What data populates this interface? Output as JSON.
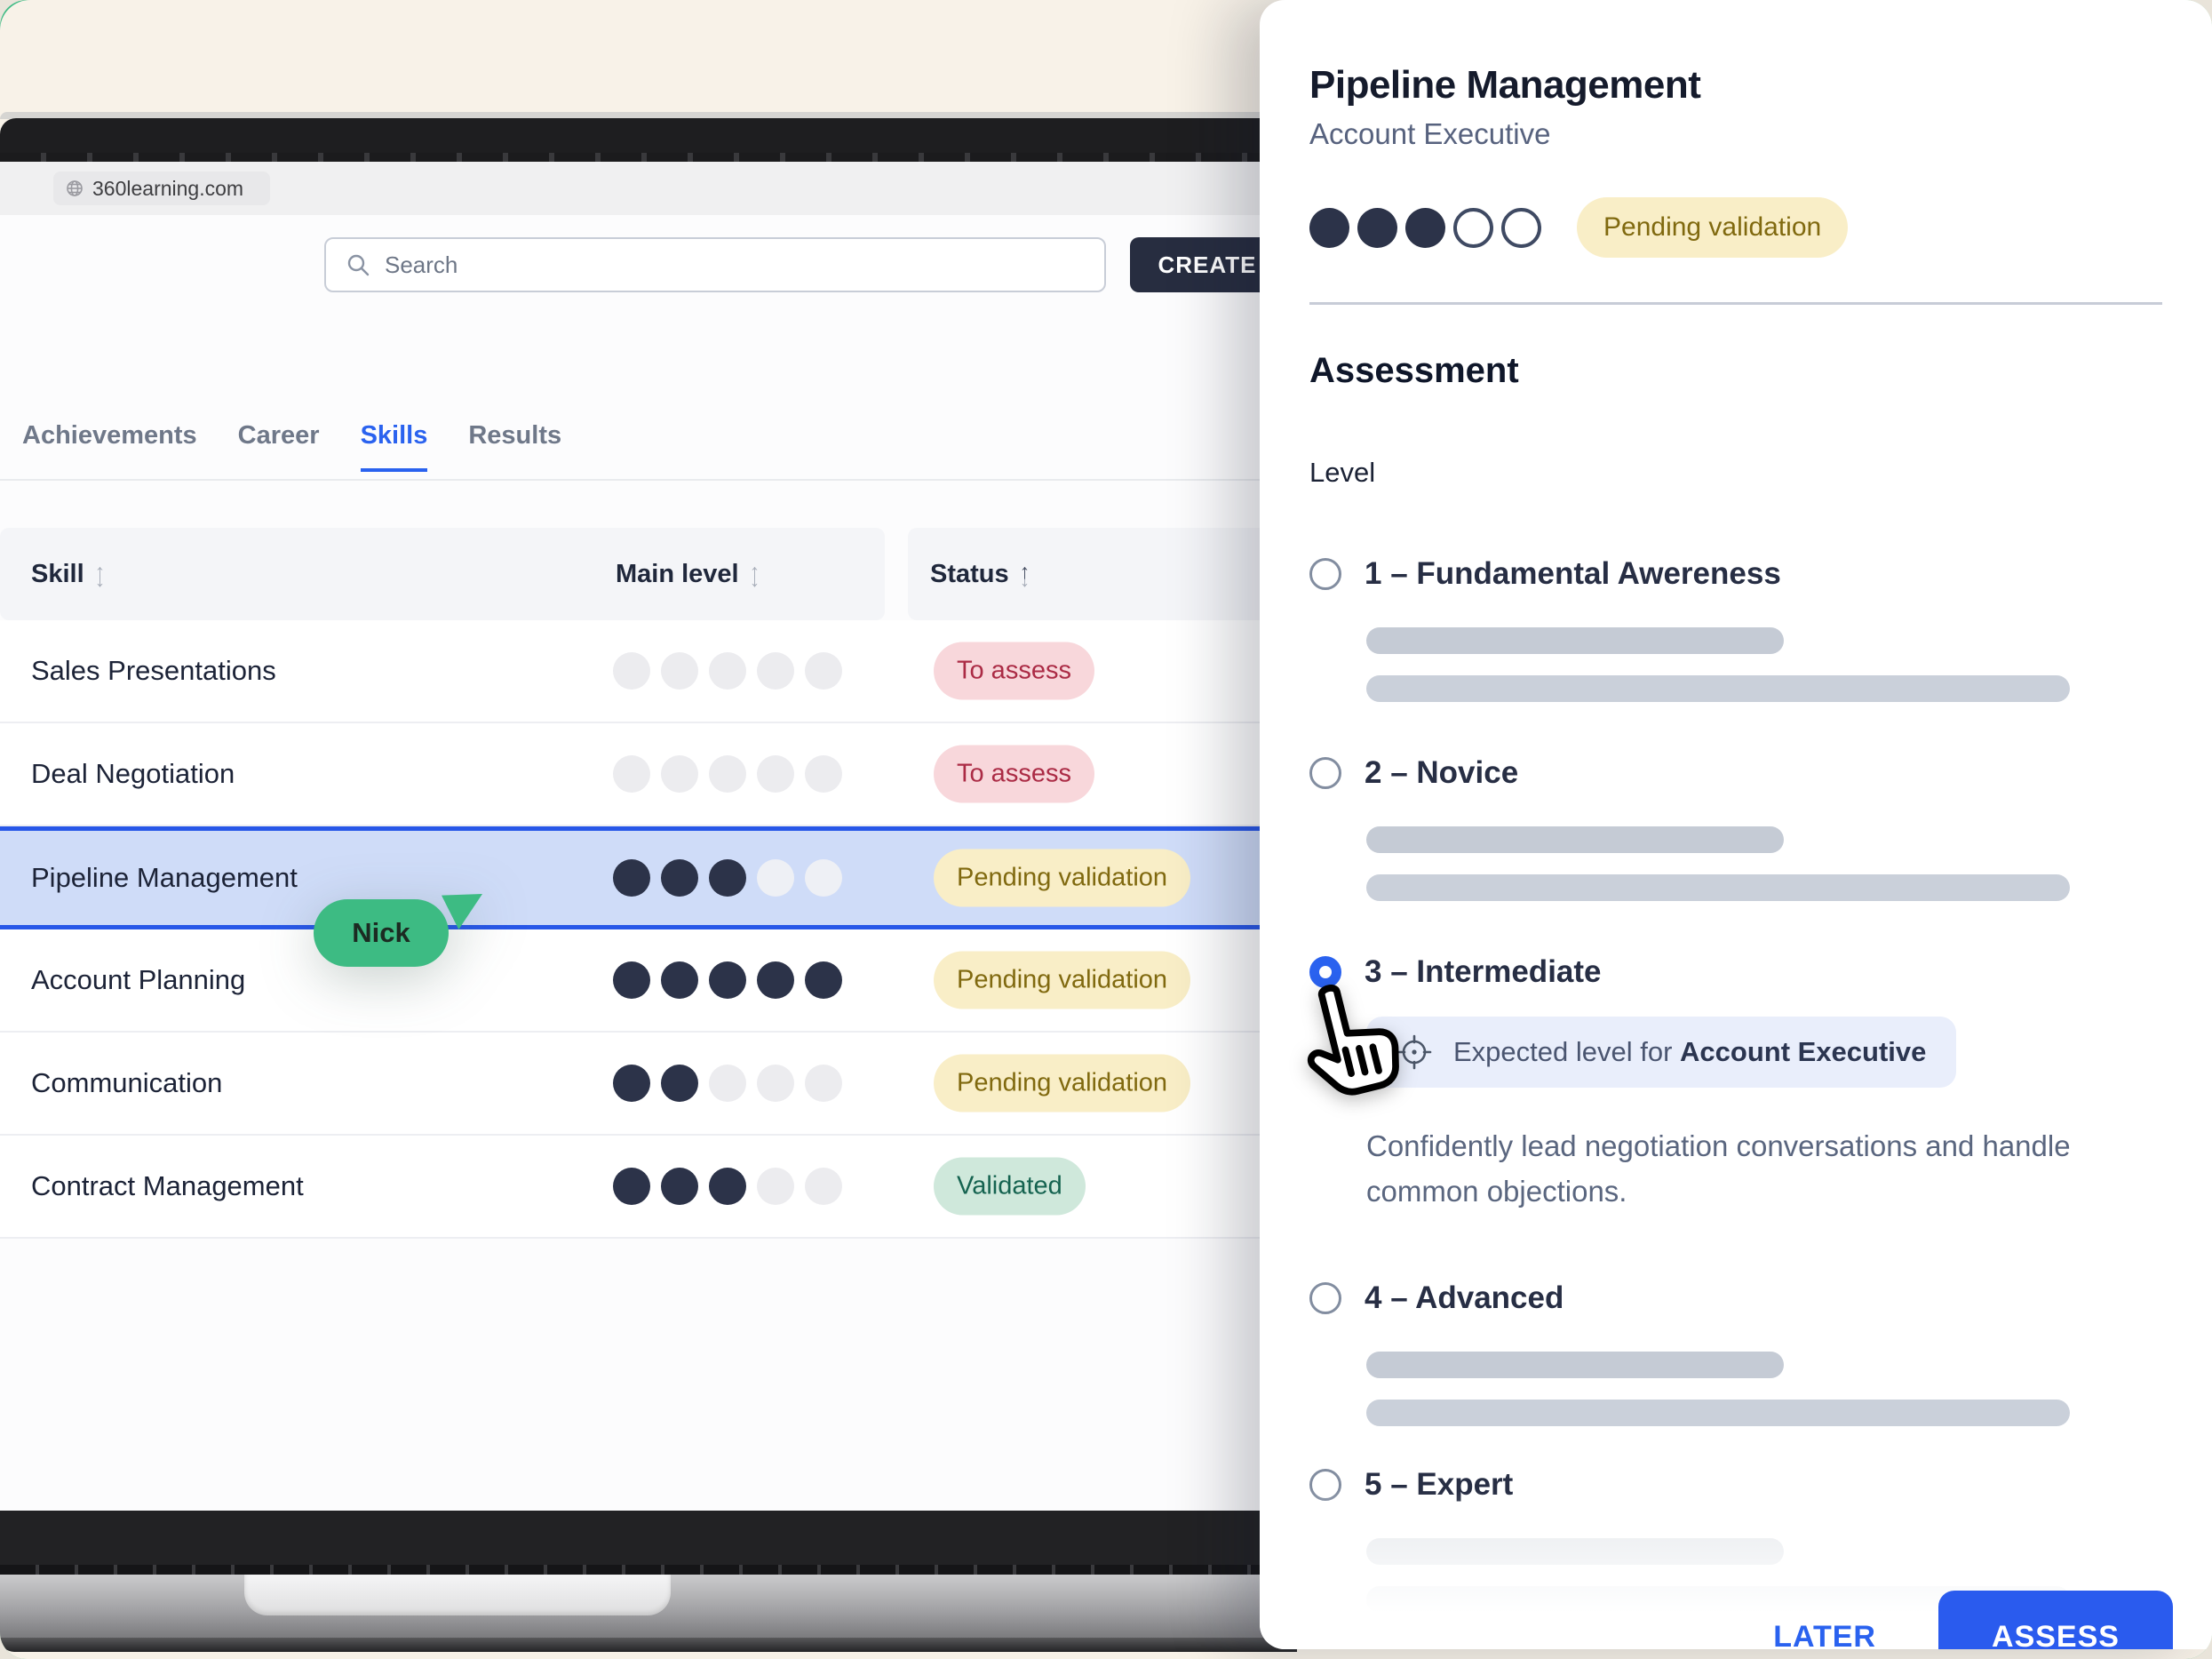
{
  "browser": {
    "url": "360learning.com"
  },
  "topbar": {
    "search_placeholder": "Search",
    "create_label": "CREATE"
  },
  "icons": {
    "sort_up": "↑",
    "sort_down": "↓",
    "caret_down": "▾"
  },
  "tabs": [
    {
      "label": "Achievements",
      "active": false
    },
    {
      "label": "Career",
      "active": false
    },
    {
      "label": "Skills",
      "active": true
    },
    {
      "label": "Results",
      "active": false
    }
  ],
  "table": {
    "columns": {
      "skill": "Skill",
      "level": "Main level",
      "status": "Status"
    },
    "max_level": 5,
    "rows": [
      {
        "skill": "Sales Presentations",
        "level": 0,
        "status": "To assess",
        "status_type": "to-assess",
        "highlighted": false
      },
      {
        "skill": "Deal Negotiation",
        "level": 0,
        "status": "To assess",
        "status_type": "to-assess",
        "highlighted": false
      },
      {
        "skill": "Pipeline Management",
        "level": 3,
        "status": "Pending validation",
        "status_type": "pending",
        "highlighted": true
      },
      {
        "skill": "Account Planning",
        "level": 5,
        "status": "Pending validation",
        "status_type": "pending",
        "highlighted": false
      },
      {
        "skill": "Communication",
        "level": 2,
        "status": "Pending validation",
        "status_type": "pending",
        "highlighted": false
      },
      {
        "skill": "Contract Management",
        "level": 3,
        "status": "Validated",
        "status_type": "validated",
        "highlighted": false
      }
    ]
  },
  "cursor_user": {
    "name": "Nick",
    "color": "#3dbb83"
  },
  "panel": {
    "title": "Pipeline Management",
    "subtitle": "Account Executive",
    "level": 3,
    "max_level": 5,
    "status": {
      "label": "Pending validation",
      "type": "pending"
    },
    "section_title": "Assessment",
    "field_label": "Level",
    "options": [
      {
        "label": "1 – Fundamental Awereness",
        "selected": false
      },
      {
        "label": "2 – Novice",
        "selected": false
      },
      {
        "label": "3 – Intermediate",
        "selected": true,
        "expected_prefix": "Expected level for ",
        "expected_role": "Account Executive",
        "description": "Confidently lead negotiation conversations and handle common objections."
      },
      {
        "label": "4 – Advanced",
        "selected": false
      },
      {
        "label": "5 – Expert",
        "selected": false
      }
    ],
    "actions": {
      "later": "LATER",
      "assess": "ASSESS"
    }
  },
  "colors": {
    "accent_blue": "#2a62ef",
    "cursor_green": "#3dbb83",
    "pending_bg": "#f9eec7",
    "to_assess_bg": "#f8d7db",
    "validated_bg": "#cfe8db"
  }
}
